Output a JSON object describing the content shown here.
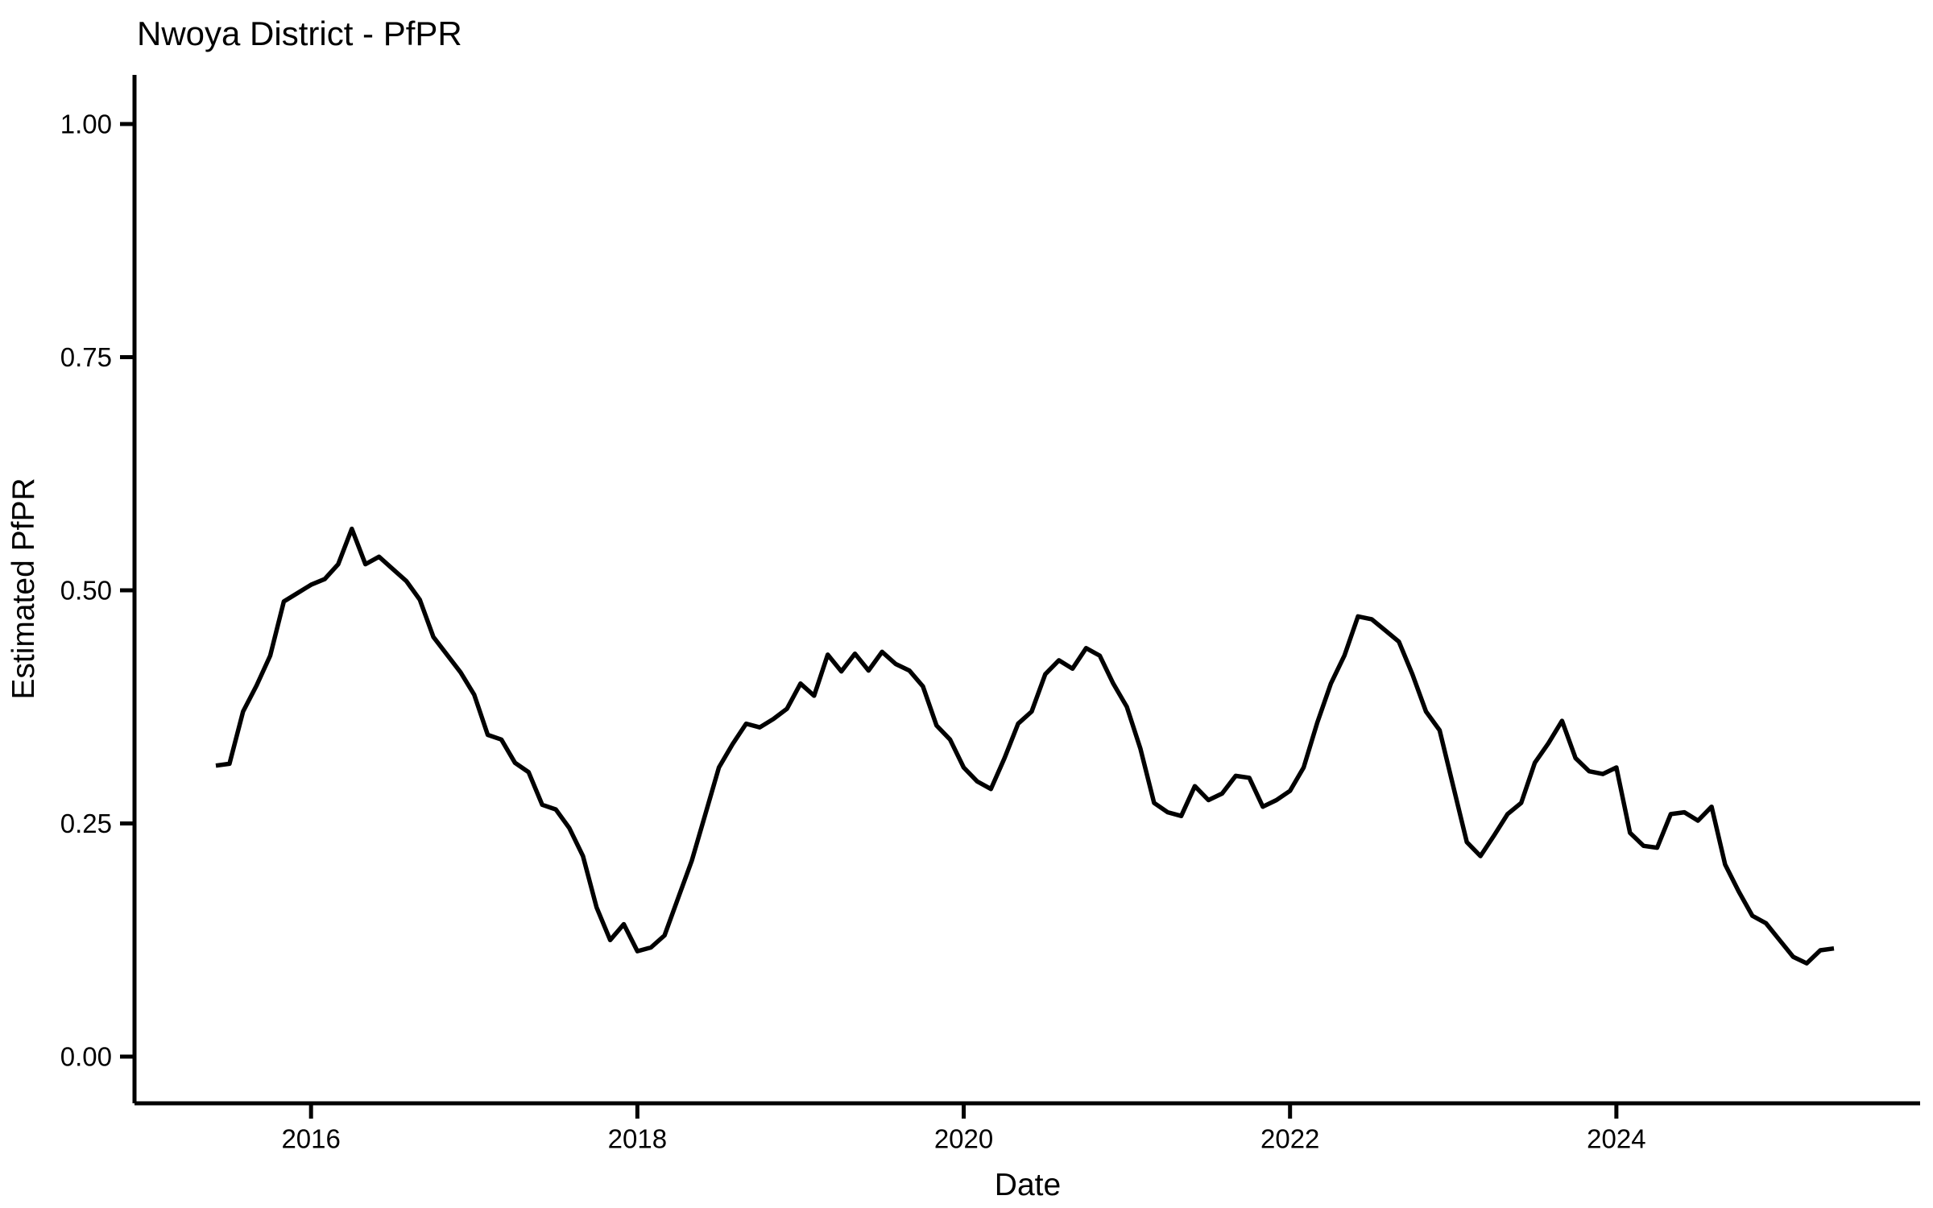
{
  "chart": {
    "title": "Nwoya District - PfPR",
    "xlabel": "Date",
    "ylabel": "Estimated PfPR"
  },
  "chart_data": {
    "type": "line",
    "title": "Nwoya District - PfPR",
    "xlabel": "Date",
    "ylabel": "Estimated PfPR",
    "grid": false,
    "legend": "none",
    "background_color": "#ffffff",
    "axis_color": "#000000",
    "line_color": "#000000",
    "ylim": [
      0.0,
      1.0
    ],
    "y_ticks": [
      0.0,
      0.25,
      0.5,
      0.75,
      1.0
    ],
    "y_tick_labels": [
      "0.00",
      "0.25",
      "0.50",
      "0.75",
      "1.00"
    ],
    "x_ticks_years": [
      2016,
      2018,
      2020,
      2022,
      2024
    ],
    "x_tick_labels": [
      "2016",
      "2018",
      "2020",
      "2022",
      "2024"
    ],
    "series": [
      {
        "name": "Estimated PfPR",
        "frequency": "monthly",
        "start": "2015-06",
        "end": "2025-05",
        "monthly_values": [
          0.312,
          0.314,
          0.37,
          0.398,
          0.43,
          0.488,
          0.497,
          0.506,
          0.512,
          0.528,
          0.566,
          0.528,
          0.536,
          0.523,
          0.51,
          0.49,
          0.45,
          0.431,
          0.412,
          0.388,
          0.345,
          0.34,
          0.315,
          0.305,
          0.27,
          0.265,
          0.245,
          0.215,
          0.16,
          0.125,
          0.142,
          0.113,
          0.117,
          0.13,
          0.17,
          0.21,
          0.26,
          0.31,
          0.335,
          0.357,
          0.353,
          0.362,
          0.373,
          0.4,
          0.387,
          0.431,
          0.413,
          0.432,
          0.414,
          0.434,
          0.421,
          0.414,
          0.397,
          0.355,
          0.34,
          0.31,
          0.295,
          0.287,
          0.32,
          0.357,
          0.37,
          0.41,
          0.425,
          0.416,
          0.438,
          0.43,
          0.4,
          0.375,
          0.33,
          0.272,
          0.262,
          0.258,
          0.29,
          0.275,
          0.282,
          0.301,
          0.299,
          0.268,
          0.275,
          0.285,
          0.31,
          0.358,
          0.4,
          0.43,
          0.472,
          0.469,
          0.457,
          0.445,
          0.41,
          0.37,
          0.35,
          0.29,
          0.23,
          0.215,
          0.237,
          0.26,
          0.272,
          0.315,
          0.336,
          0.36,
          0.32,
          0.306,
          0.303,
          0.31,
          0.24,
          0.226,
          0.224,
          0.26,
          0.262,
          0.253,
          0.268,
          0.206,
          0.177,
          0.151,
          0.143,
          0.125,
          0.107,
          0.1,
          0.114,
          0.116
        ]
      }
    ]
  }
}
